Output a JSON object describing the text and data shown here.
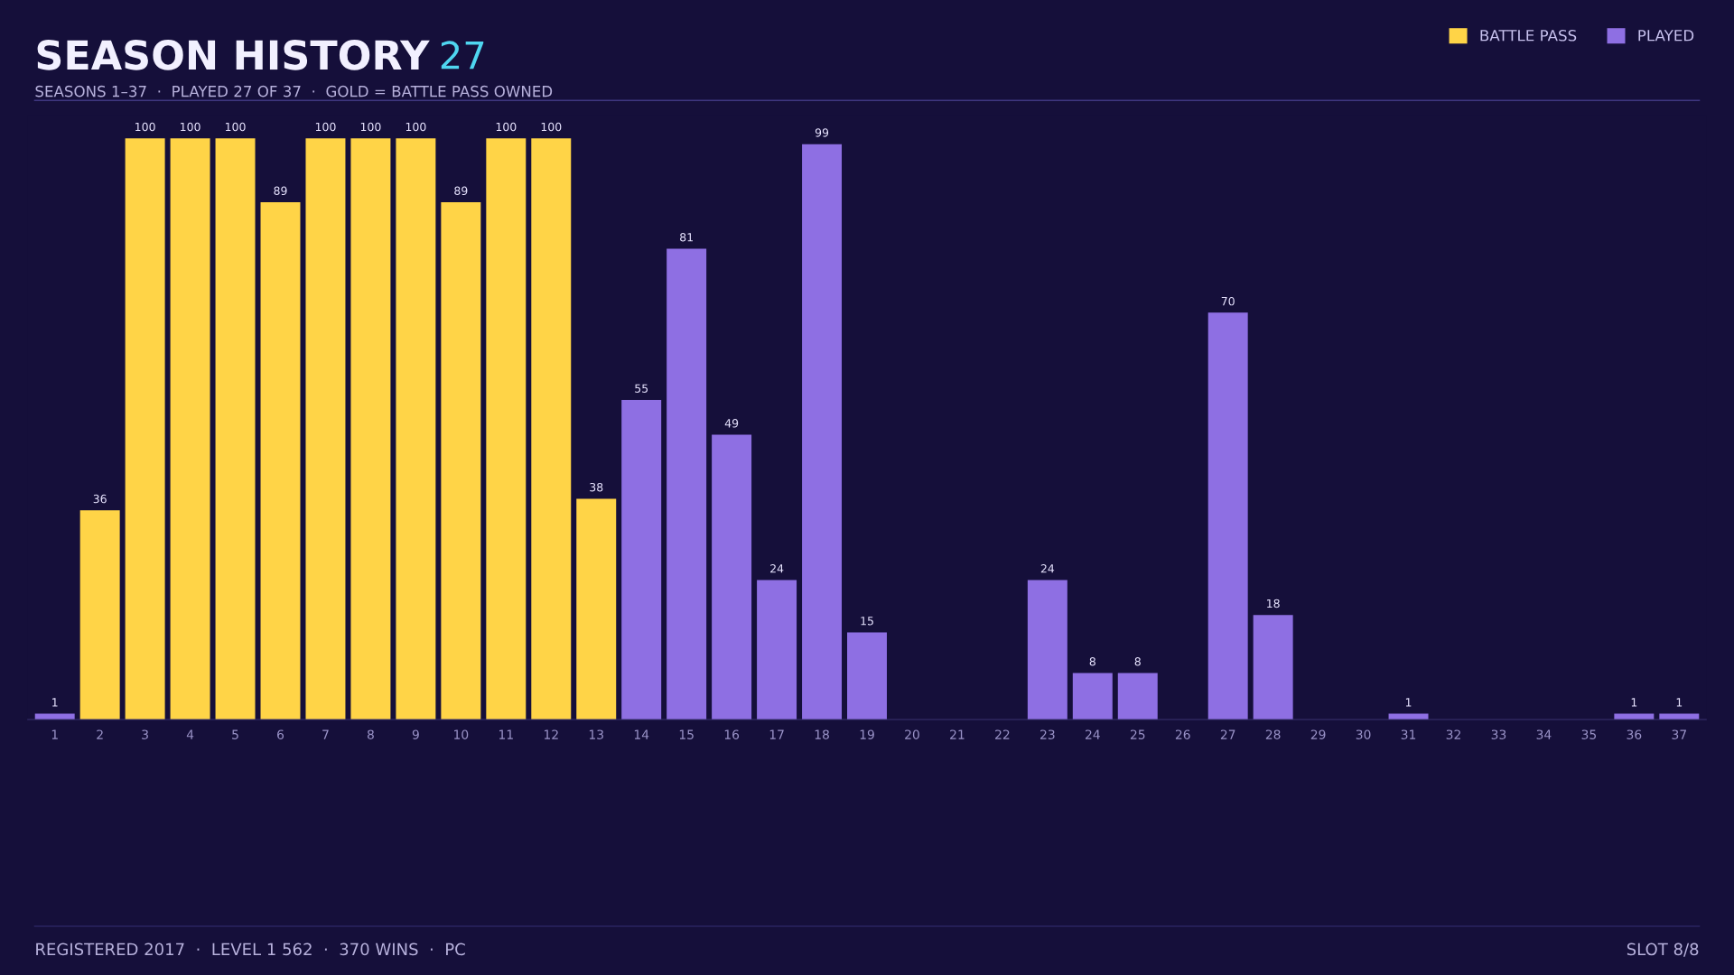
{
  "chart_data": {
    "type": "bar",
    "title": "SEASON HISTORY",
    "subtitle": "SEASONS 1–37  ·  PLAYED 27 OF 37  ·  GOLD = BATTLE PASS OWNED",
    "categories": [
      "1",
      "2",
      "3",
      "4",
      "5",
      "6",
      "7",
      "8",
      "9",
      "10",
      "11",
      "12",
      "13",
      "14",
      "15",
      "16",
      "17",
      "18",
      "19",
      "20",
      "21",
      "22",
      "23",
      "24",
      "25",
      "26",
      "27",
      "28",
      "29",
      "30",
      "31",
      "32",
      "33",
      "34",
      "35",
      "36",
      "37"
    ],
    "series": [
      {
        "name": "BATTLE PASS",
        "color": "#ffd447",
        "values": [
          null,
          36,
          100,
          100,
          100,
          89,
          100,
          100,
          100,
          89,
          100,
          100,
          38,
          null,
          null,
          null,
          null,
          null,
          null,
          null,
          null,
          null,
          null,
          null,
          null,
          null,
          null,
          null,
          null,
          null,
          null,
          null,
          null,
          null,
          null,
          null,
          null
        ]
      },
      {
        "name": "PLAYED",
        "color": "#8e6fe3",
        "values": [
          1,
          null,
          null,
          null,
          null,
          null,
          null,
          null,
          null,
          null,
          null,
          null,
          null,
          55,
          81,
          49,
          24,
          99,
          15,
          0,
          0,
          0,
          24,
          8,
          8,
          0,
          70,
          18,
          0,
          0,
          1,
          0,
          0,
          0,
          0,
          1,
          1
        ],
        "value_labels": [
          "1",
          null,
          null,
          null,
          null,
          null,
          null,
          null,
          null,
          null,
          null,
          null,
          null,
          "55",
          "81",
          "49",
          "24",
          "99",
          "15",
          null,
          null,
          null,
          "24",
          "8",
          "8",
          null,
          "70",
          "18",
          null,
          null,
          "1",
          null,
          null,
          null,
          null,
          "1",
          "1"
        ]
      }
    ],
    "data_labels": true,
    "legend": "top right",
    "grid": false,
    "annotations": [
      "27",
      "REGISTERED 2017  ·  LEVEL 1 562  ·  370 WINS  ·  PC",
      "SLOT 8/8"
    ]
  }
}
